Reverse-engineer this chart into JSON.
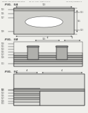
{
  "bg_color": "#f0f0ec",
  "fig5a_label": "FIG.  5A",
  "fig5b_label": "FIG.  5B",
  "fig5c_label": "FIG.  5C",
  "lc": "#404040",
  "fill_white": "#ffffff",
  "fill_light": "#d0d0cc",
  "fill_medium": "#b0b0ac",
  "fill_dark": "#909090",
  "fill_dotted": "#e0e0dc",
  "fill_bg": "#f0f0ec"
}
